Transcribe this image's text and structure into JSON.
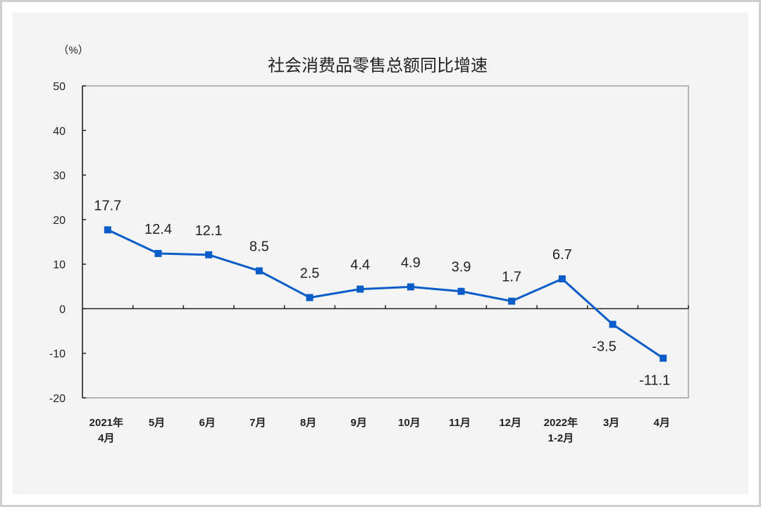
{
  "chart_data": {
    "type": "line",
    "title": "社会消费品零售总额同比增速",
    "ylabel": "（%）",
    "xlabel": "",
    "categories": [
      "2021年\n4月",
      "5月",
      "6月",
      "7月",
      "8月",
      "9月",
      "10月",
      "11月",
      "12月",
      "2022年\n1-2月",
      "3月",
      "4月"
    ],
    "values": [
      17.7,
      12.4,
      12.1,
      8.5,
      2.5,
      4.4,
      4.9,
      3.9,
      1.7,
      6.7,
      -3.5,
      -11.1
    ],
    "data_labels": [
      "17.7",
      "12.4",
      "12.1",
      "8.5",
      "2.5",
      "4.4",
      "4.9",
      "3.9",
      "1.7",
      "6.7",
      "-3.5",
      "-11.1"
    ],
    "ylim": [
      -20,
      50
    ],
    "yticks": [
      -20,
      -10,
      0,
      10,
      20,
      30,
      40,
      50
    ],
    "grid": false,
    "legend": "none",
    "line_color": "#0a5cc8",
    "marker": "square"
  }
}
